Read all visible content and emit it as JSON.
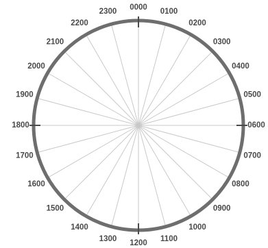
{
  "dial": {
    "hours": [
      "0000",
      "0100",
      "0200",
      "0300",
      "0400",
      "0500",
      "0600",
      "0700",
      "0800",
      "0900",
      "1000",
      "1100",
      "1200",
      "1300",
      "1400",
      "1500",
      "1600",
      "1700",
      "1800",
      "1900",
      "2000",
      "2100",
      "2200",
      "2300"
    ],
    "colors": {
      "rim": "#6e6e6e",
      "spokes": "#c9c9c9",
      "major_ticks": "#4a4a4a",
      "labels": "#4a4a4a",
      "background": "#ffffff"
    }
  }
}
